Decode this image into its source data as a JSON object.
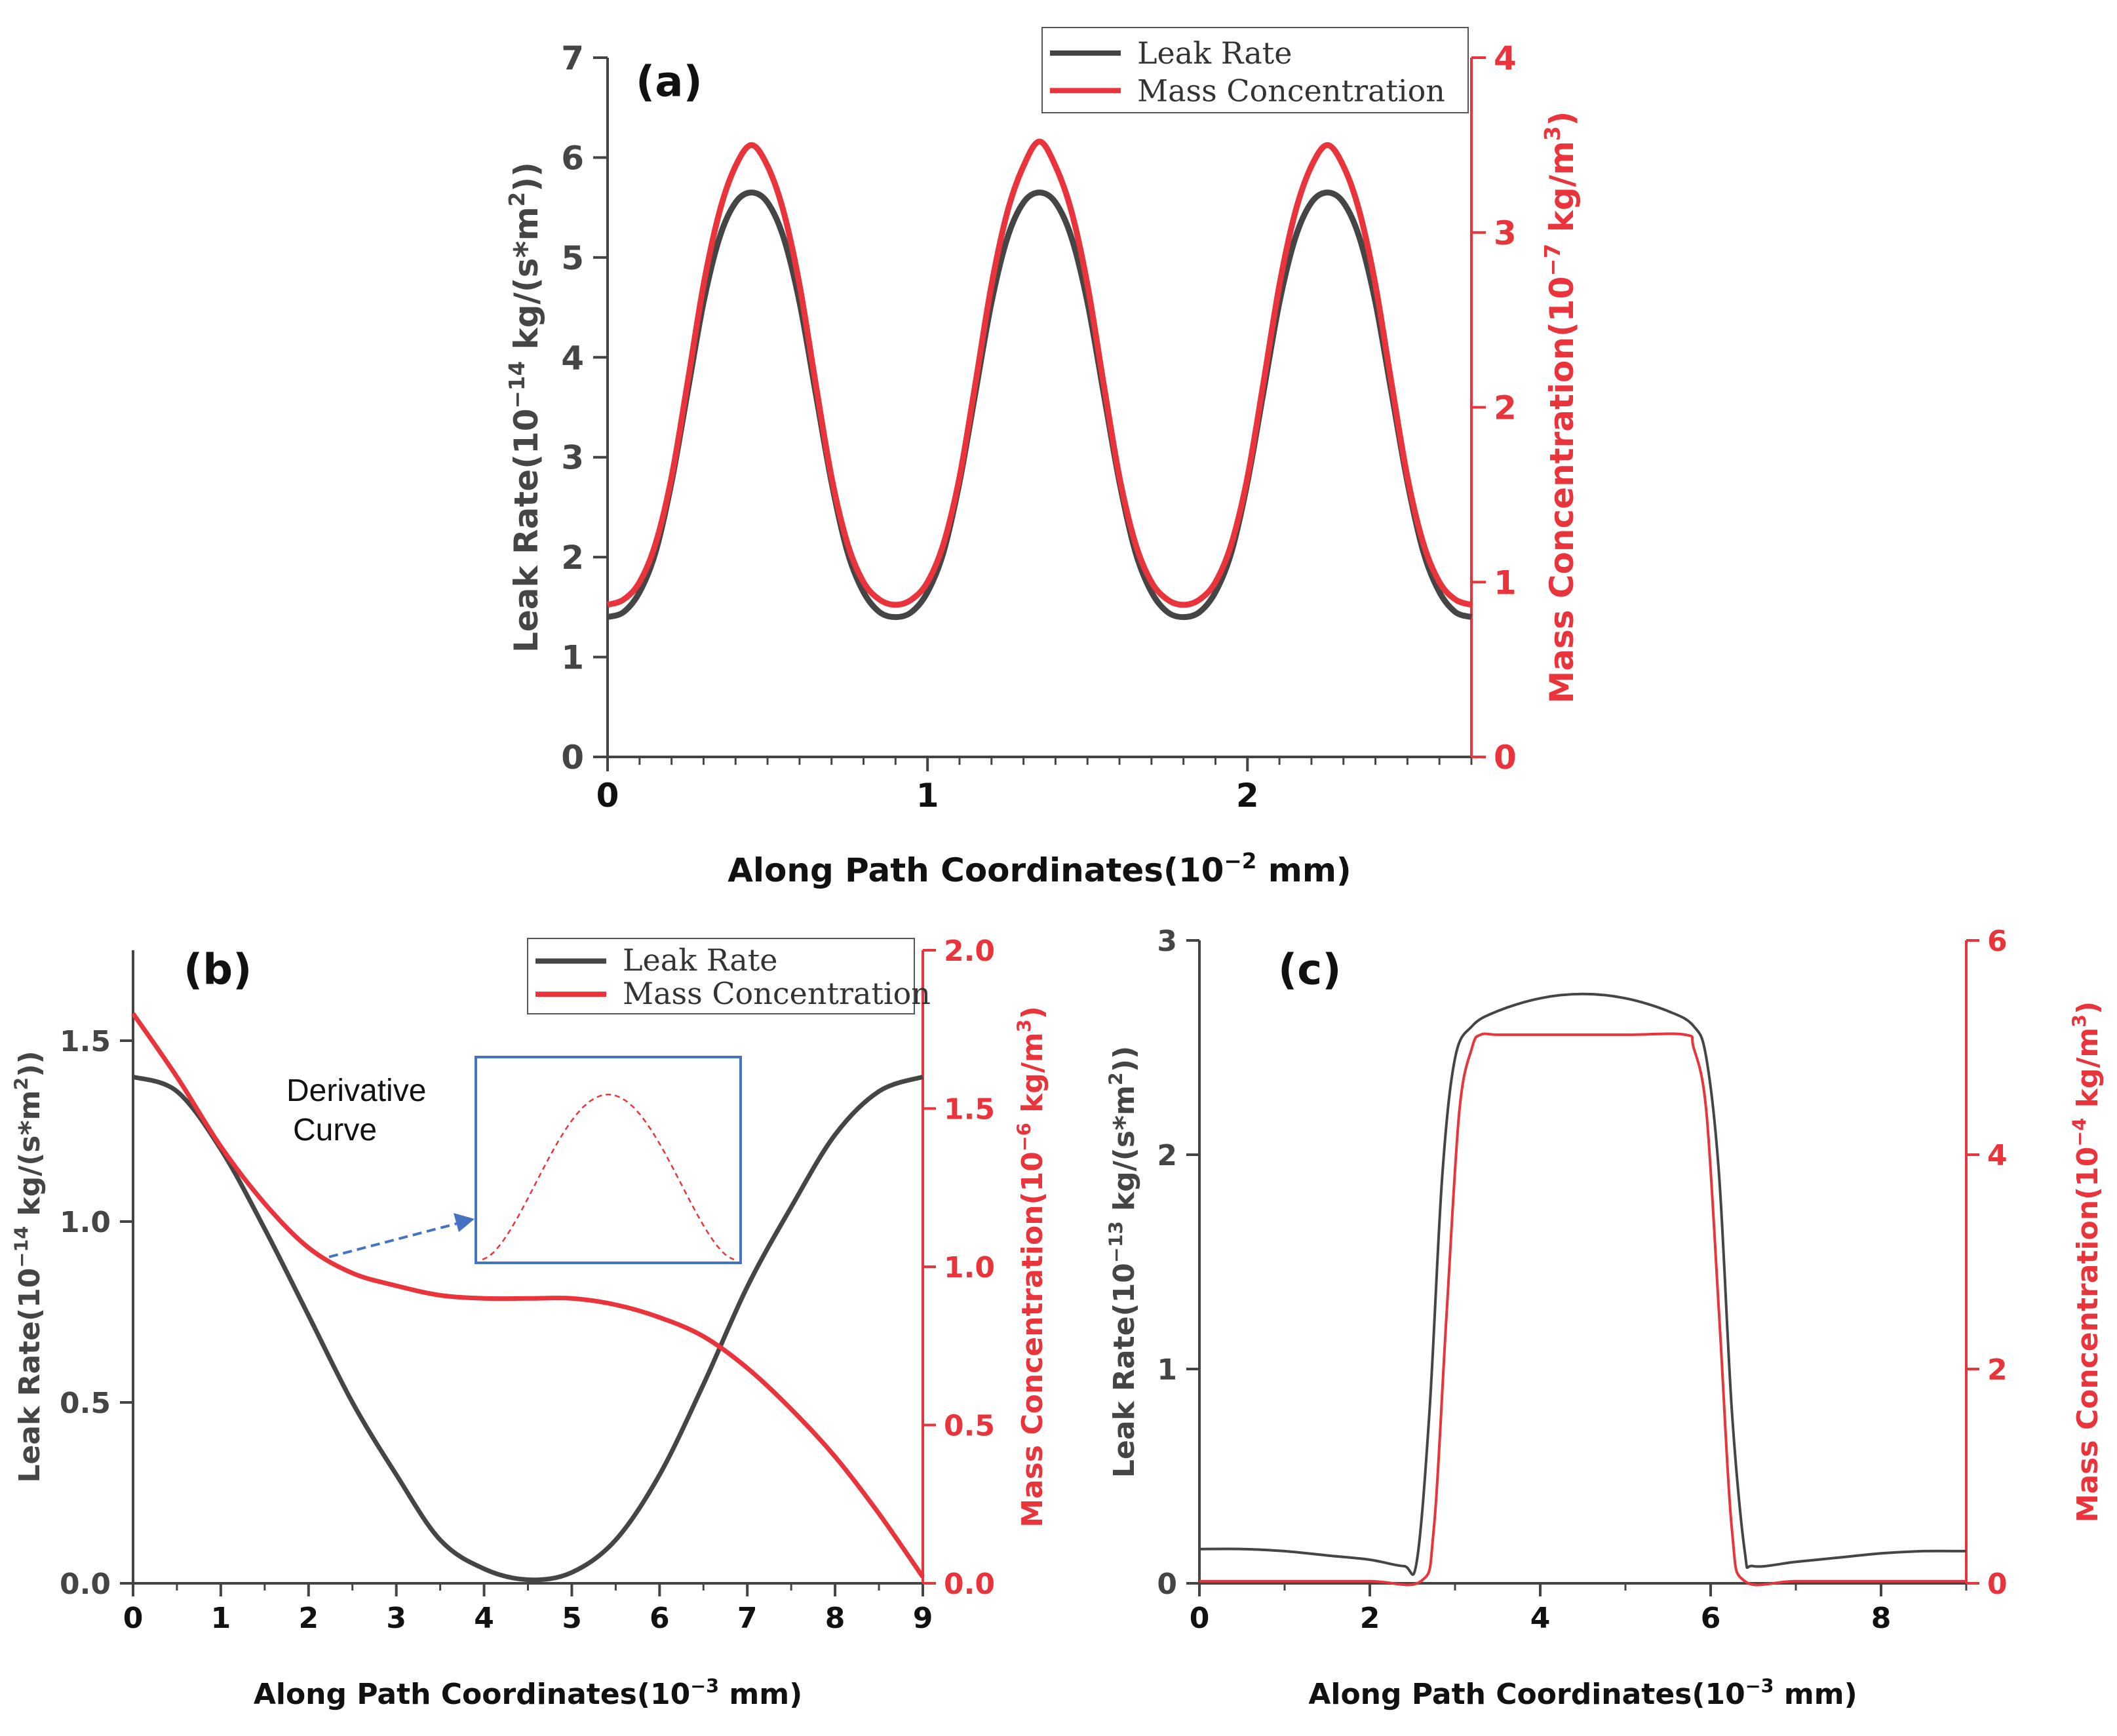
{
  "colors": {
    "dark": "#454545",
    "red": "#e8343a",
    "blue": "#4472c4",
    "axis": "#444444"
  },
  "chart_data": [
    {
      "id": "a",
      "type": "line",
      "panel_label": "(a)",
      "xlabel_main": "Along Path Coordinates(10",
      "xlabel_exp": "−2",
      "xlabel_tail": " mm)",
      "ylabel_left_main": "Leak Rate(10",
      "ylabel_left_exp": "−14",
      "ylabel_left_mid": " kg/(s*m",
      "ylabel_left_exp2": "2",
      "ylabel_left_tail": "))",
      "ylabel_right_main": "Mass Concentration(10",
      "ylabel_right_exp": "−7",
      "ylabel_right_mid": " kg/m",
      "ylabel_right_exp2": "3",
      "ylabel_right_tail": ")",
      "xlim": [
        0,
        2.7
      ],
      "ylim_left": [
        0,
        7
      ],
      "ylim_right": [
        0,
        4
      ],
      "xticks": [
        0,
        1,
        2
      ],
      "xtick_labels": [
        "0",
        "1",
        "2"
      ],
      "yticks_left": [
        0,
        1,
        2,
        3,
        4,
        5,
        6,
        7
      ],
      "ytick_left_labels": [
        "0",
        "1",
        "2",
        "3",
        "4",
        "5",
        "6",
        "7"
      ],
      "yticks_right": [
        0,
        1,
        2,
        3,
        4
      ],
      "ytick_right_labels": [
        "0",
        "1",
        "2",
        "3",
        "4"
      ],
      "legend": [
        "Leak Rate",
        "Mass Concentration"
      ],
      "series": [
        {
          "name": "Leak Rate",
          "axis": "left",
          "x": [
            0,
            0.05,
            0.1,
            0.15,
            0.2,
            0.25,
            0.3,
            0.35,
            0.4,
            0.45,
            0.5,
            0.55,
            0.6,
            0.65,
            0.7,
            0.75,
            0.8,
            0.85,
            0.9,
            0.95,
            1.0,
            1.05,
            1.1,
            1.15,
            1.2,
            1.25,
            1.3,
            1.35,
            1.4,
            1.45,
            1.5,
            1.55,
            1.6,
            1.65,
            1.7,
            1.75,
            1.8,
            1.85,
            1.9,
            1.95,
            2.0,
            2.05,
            2.1,
            2.15,
            2.2,
            2.25,
            2.3,
            2.35,
            2.4,
            2.45,
            2.5,
            2.55,
            2.6,
            2.65,
            2.7
          ],
          "values": [
            1.4,
            1.45,
            1.65,
            2.05,
            2.75,
            3.65,
            4.55,
            5.2,
            5.55,
            5.65,
            5.55,
            5.2,
            4.55,
            3.65,
            2.75,
            2.05,
            1.65,
            1.45,
            1.4,
            1.45,
            1.65,
            2.05,
            2.75,
            3.65,
            4.55,
            5.2,
            5.55,
            5.65,
            5.55,
            5.2,
            4.55,
            3.65,
            2.75,
            2.05,
            1.65,
            1.45,
            1.4,
            1.45,
            1.65,
            2.05,
            2.75,
            3.65,
            4.55,
            5.2,
            5.55,
            5.65,
            5.55,
            5.2,
            4.55,
            3.65,
            2.75,
            2.05,
            1.65,
            1.45,
            1.4
          ]
        },
        {
          "name": "Mass Concentration",
          "axis": "right",
          "x": [
            0,
            0.05,
            0.1,
            0.15,
            0.2,
            0.25,
            0.3,
            0.35,
            0.4,
            0.45,
            0.5,
            0.55,
            0.6,
            0.65,
            0.7,
            0.75,
            0.8,
            0.85,
            0.9,
            0.95,
            1.0,
            1.05,
            1.1,
            1.15,
            1.2,
            1.25,
            1.3,
            1.35,
            1.4,
            1.45,
            1.5,
            1.55,
            1.6,
            1.65,
            1.7,
            1.75,
            1.8,
            1.85,
            1.9,
            1.95,
            2.0,
            2.05,
            2.1,
            2.15,
            2.2,
            2.25,
            2.3,
            2.35,
            2.4,
            2.45,
            2.5,
            2.55,
            2.6,
            2.65,
            2.7
          ],
          "values": [
            0.87,
            0.9,
            1.0,
            1.22,
            1.6,
            2.14,
            2.7,
            3.12,
            3.38,
            3.5,
            3.38,
            3.12,
            2.7,
            2.14,
            1.6,
            1.22,
            1.0,
            0.9,
            0.87,
            0.9,
            1.0,
            1.22,
            1.6,
            2.14,
            2.7,
            3.12,
            3.38,
            3.52,
            3.38,
            3.12,
            2.7,
            2.14,
            1.6,
            1.22,
            1.0,
            0.9,
            0.87,
            0.9,
            1.0,
            1.22,
            1.6,
            2.14,
            2.7,
            3.12,
            3.38,
            3.5,
            3.38,
            3.12,
            2.7,
            2.14,
            1.6,
            1.22,
            1.0,
            0.9,
            0.87
          ]
        }
      ]
    },
    {
      "id": "b",
      "type": "line",
      "panel_label": "(b)",
      "xlabel_main": "Along Path Coordinates(10",
      "xlabel_exp": "−3",
      "xlabel_tail": " mm)",
      "ylabel_left_main": "Leak Rate(10",
      "ylabel_left_exp": "−14",
      "ylabel_left_mid": " kg/(s*m",
      "ylabel_left_exp2": "2",
      "ylabel_left_tail": "))",
      "ylabel_right_main": "Mass Concentration(10",
      "ylabel_right_exp": "−6",
      "ylabel_right_mid": " kg/m",
      "ylabel_right_exp2": "3",
      "ylabel_right_tail": ")",
      "xlim": [
        0,
        9
      ],
      "ylim_left": [
        0,
        1.75
      ],
      "ylim_right": [
        0,
        2.0
      ],
      "xticks": [
        0,
        1,
        2,
        3,
        4,
        5,
        6,
        7,
        8,
        9
      ],
      "xtick_labels": [
        "0",
        "1",
        "2",
        "3",
        "4",
        "5",
        "6",
        "7",
        "8",
        "9"
      ],
      "yticks_left": [
        0,
        0.5,
        1.0,
        1.5
      ],
      "ytick_left_labels": [
        "0.0",
        "0.5",
        "1.0",
        "1.5"
      ],
      "yticks_right": [
        0,
        0.5,
        1.0,
        1.5,
        2.0
      ],
      "ytick_right_labels": [
        "0.0",
        "0.5",
        "1.0",
        "1.5",
        "2.0"
      ],
      "legend": [
        "Leak Rate",
        "Mass Concentration"
      ],
      "annotation": {
        "text_line1": "Derivative",
        "text_line2": "Curve"
      },
      "series": [
        {
          "name": "Leak Rate",
          "axis": "left",
          "x": [
            0,
            0.5,
            1,
            1.5,
            2,
            2.5,
            3,
            3.5,
            4,
            4.5,
            5,
            5.5,
            6,
            6.5,
            7,
            7.5,
            8,
            8.5,
            9
          ],
          "values": [
            1.4,
            1.36,
            1.2,
            0.98,
            0.74,
            0.5,
            0.3,
            0.12,
            0.04,
            0.01,
            0.03,
            0.12,
            0.3,
            0.55,
            0.82,
            1.04,
            1.24,
            1.36,
            1.4
          ]
        },
        {
          "name": "Mass Concentration",
          "axis": "right",
          "x": [
            0,
            0.5,
            1,
            1.5,
            2,
            2.5,
            3,
            3.5,
            4,
            4.5,
            5,
            5.5,
            6,
            6.5,
            7,
            7.5,
            8,
            8.5,
            9
          ],
          "values": [
            1.8,
            1.6,
            1.38,
            1.2,
            1.06,
            0.98,
            0.94,
            0.91,
            0.9,
            0.9,
            0.9,
            0.88,
            0.84,
            0.78,
            0.68,
            0.55,
            0.4,
            0.22,
            0.02
          ]
        }
      ]
    },
    {
      "id": "c",
      "type": "line",
      "panel_label": "(c)",
      "xlabel_main": "Along Path Coordinates(10",
      "xlabel_exp": "−3",
      "xlabel_tail": " mm)",
      "ylabel_left_main": "Leak Rate(10",
      "ylabel_left_exp": "−13",
      "ylabel_left_mid": " kg/(s*m",
      "ylabel_left_exp2": "2",
      "ylabel_left_tail": "))",
      "ylabel_right_main": "Mass Concentration(10",
      "ylabel_right_exp": "−4",
      "ylabel_right_mid": " kg/m",
      "ylabel_right_exp2": "3",
      "ylabel_right_tail": ")",
      "xlim": [
        0,
        9
      ],
      "ylim_left": [
        0,
        3
      ],
      "ylim_right": [
        0,
        6
      ],
      "xticks": [
        0,
        2,
        4,
        6,
        8
      ],
      "xtick_labels": [
        "0",
        "2",
        "4",
        "6",
        "8"
      ],
      "yticks_left": [
        0,
        1,
        2,
        3
      ],
      "ytick_left_labels": [
        "0",
        "1",
        "2",
        "3"
      ],
      "yticks_right": [
        0,
        2,
        4,
        6
      ],
      "ytick_right_labels": [
        "0",
        "2",
        "4",
        "6"
      ],
      "series": [
        {
          "name": "Leak Rate",
          "axis": "left",
          "x": [
            0,
            0.5,
            1,
            1.5,
            2,
            2.4,
            2.55,
            2.7,
            2.85,
            3.0,
            3.2,
            3.5,
            4.0,
            4.5,
            5.0,
            5.5,
            5.8,
            5.95,
            6.1,
            6.25,
            6.4,
            6.5,
            7,
            7.5,
            8,
            8.5,
            9
          ],
          "values": [
            0.16,
            0.16,
            0.15,
            0.13,
            0.11,
            0.08,
            0.1,
            0.8,
            1.9,
            2.45,
            2.6,
            2.67,
            2.73,
            2.75,
            2.73,
            2.67,
            2.6,
            2.45,
            1.9,
            0.8,
            0.15,
            0.08,
            0.1,
            0.12,
            0.14,
            0.15,
            0.15
          ]
        },
        {
          "name": "Mass Concentration",
          "axis": "right",
          "x": [
            0,
            1,
            2,
            2.6,
            2.75,
            2.9,
            3.05,
            3.2,
            3.3,
            3.5,
            4,
            5,
            5.7,
            5.8,
            5.95,
            6.1,
            6.25,
            6.4,
            7,
            8,
            9
          ],
          "values": [
            0.02,
            0.02,
            0.02,
            0.02,
            0.5,
            2.5,
            4.4,
            5.0,
            5.12,
            5.12,
            5.12,
            5.12,
            5.12,
            5.0,
            4.4,
            2.5,
            0.5,
            0.02,
            0.02,
            0.02,
            0.02
          ]
        }
      ]
    }
  ]
}
